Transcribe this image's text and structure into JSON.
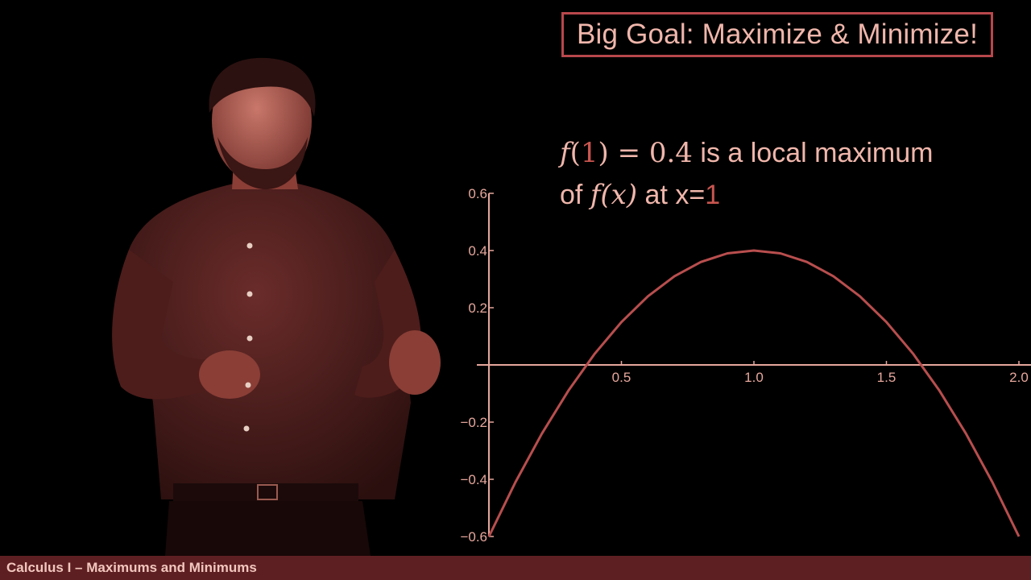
{
  "slide": {
    "goal_title": "Big Goal: Maximize & Minimize!",
    "annotation": {
      "line1": {
        "fn": "f",
        "open_paren": "(",
        "arg": "1",
        "close_eq": ") = 0.4",
        "text": " is a local maximum"
      },
      "line2": {
        "prefix": "of ",
        "fn_expr": "f(x)",
        "mid": " at x=",
        "value": "1"
      }
    },
    "footer": "Calculus I – Maximums and Minimums"
  },
  "colors": {
    "background": "#000000",
    "text": "#f0b6ab",
    "accent": "#b8474b",
    "curve": "#b84e4e",
    "axis": "#e6a79c",
    "footer_bar": "#5e1f23"
  },
  "chart_data": {
    "type": "line",
    "title": "",
    "xlabel": "",
    "ylabel": "",
    "xlim": [
      0,
      2
    ],
    "ylim": [
      -0.6,
      0.6
    ],
    "x_ticks": [
      0.5,
      1.0,
      1.5,
      2.0
    ],
    "x_tick_labels": [
      "0.5",
      "1.0",
      "1.5",
      "2.0"
    ],
    "y_ticks": [
      0.6,
      0.4,
      0.2,
      -0.2,
      -0.4,
      -0.6
    ],
    "y_tick_labels": [
      "0.6",
      "0.4",
      "0.2",
      "−0.2",
      "−0.4",
      "−0.6"
    ],
    "grid": false,
    "series": [
      {
        "x": [
          0.0,
          0.1,
          0.2,
          0.3,
          0.4,
          0.5,
          0.6,
          0.7,
          0.8,
          0.9,
          1.0,
          1.1,
          1.2,
          1.3,
          1.4,
          1.5,
          1.6,
          1.7,
          1.8,
          1.9,
          2.0
        ],
        "y": [
          -0.6,
          -0.41,
          -0.24,
          -0.09,
          0.04,
          0.15,
          0.24,
          0.31,
          0.36,
          0.39,
          0.4,
          0.39,
          0.36,
          0.31,
          0.24,
          0.15,
          0.04,
          -0.09,
          -0.24,
          -0.41,
          -0.6
        ]
      }
    ]
  }
}
